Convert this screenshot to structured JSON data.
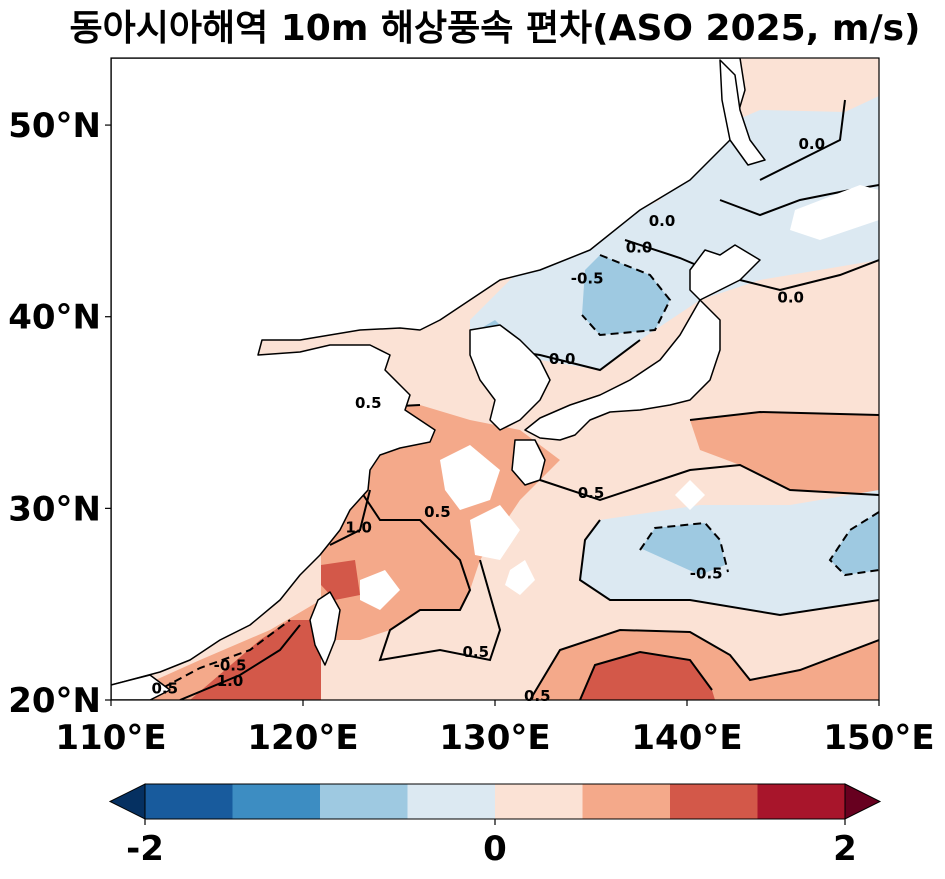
{
  "title": "동아시아해역 10m 해상풍속 편차(ASO 2025, m/s)",
  "map": {
    "extent_lon": [
      110,
      150
    ],
    "extent_lat": [
      20,
      53.5
    ],
    "xticks": [
      {
        "lon": 110,
        "label": "110°E"
      },
      {
        "lon": 120,
        "label": "120°E"
      },
      {
        "lon": 130,
        "label": "130°E"
      },
      {
        "lon": 140,
        "label": "140°E"
      },
      {
        "lon": 150,
        "label": "150°E"
      }
    ],
    "yticks": [
      {
        "lat": 20,
        "label": "20°N"
      },
      {
        "lat": 30,
        "label": "30°N"
      },
      {
        "lat": 40,
        "label": "40°N"
      },
      {
        "lat": 50,
        "label": "50°N"
      }
    ],
    "contour_labels": [
      {
        "text": "0.0",
        "lon": 146.5,
        "lat": 49.0
      },
      {
        "text": "0.0",
        "lon": 138.7,
        "lat": 45.0
      },
      {
        "text": "0.0",
        "lon": 137.5,
        "lat": 43.6
      },
      {
        "text": "0.0",
        "lon": 145.4,
        "lat": 41.0
      },
      {
        "text": "-0.5",
        "lon": 134.8,
        "lat": 42.0
      },
      {
        "text": "0.0",
        "lon": 133.5,
        "lat": 37.8
      },
      {
        "text": "0.5",
        "lon": 123.4,
        "lat": 35.5
      },
      {
        "text": "0.5",
        "lon": 127.0,
        "lat": 29.8
      },
      {
        "text": "1.0",
        "lon": 122.9,
        "lat": 29.0
      },
      {
        "text": "0.5",
        "lon": 135.0,
        "lat": 30.8
      },
      {
        "text": "-0.5",
        "lon": 141.0,
        "lat": 26.6
      },
      {
        "text": "0.5",
        "lon": 129.0,
        "lat": 22.5
      },
      {
        "text": "-0.5",
        "lon": 116.2,
        "lat": 21.8
      },
      {
        "text": "1.0",
        "lon": 116.2,
        "lat": 21.0
      },
      {
        "text": "0.5",
        "lon": 112.8,
        "lat": 20.6
      },
      {
        "text": "0.5",
        "lon": 132.2,
        "lat": 20.2
      }
    ]
  },
  "colorbar": {
    "vmin": -2.5,
    "vmax": 2.5,
    "boundaries": [
      -2.0,
      -1.5,
      -1.0,
      -0.5,
      0.0,
      0.5,
      1.0,
      1.5,
      2.0
    ],
    "colors": [
      "#053061",
      "#185b9d",
      "#3d8dc2",
      "#9ec9e1",
      "#dce9f2",
      "#fbe2d5",
      "#f4a98a",
      "#d35849",
      "#a8152b",
      "#67001f"
    ],
    "ticks": [
      {
        "value": -2,
        "label": "-2"
      },
      {
        "value": 0,
        "label": "0"
      },
      {
        "value": 2,
        "label": "2"
      }
    ]
  }
}
